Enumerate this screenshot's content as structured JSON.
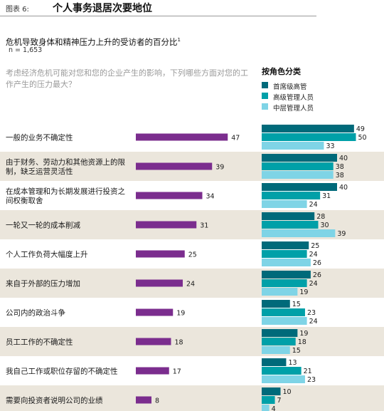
{
  "header": {
    "figure_label": "图表 6:",
    "title": "个人事务退居次要地位"
  },
  "subtitle": "危机导致身体和精神压力上升的受访者的百分比",
  "subtitle_footnote": "1",
  "sample": "n = 1,653",
  "question": "考虑经济危机可能对您和您的企业产生的影响，下列哪些方面对您的工作产生的压力最大？",
  "legend": {
    "title": "按角色分类",
    "items": [
      {
        "label": "首席级高管",
        "color": "#006a7a"
      },
      {
        "label": "高级管理人员",
        "color": "#00a0a8"
      },
      {
        "label": "中层管理人员",
        "color": "#7fd4e6"
      }
    ]
  },
  "colors": {
    "overall": "#7b2d8e",
    "row_shade": "#ebe6dc"
  },
  "chart_data": {
    "type": "bar",
    "orientation": "horizontal",
    "categories": [
      "一般的业务不确定性",
      "由于财务、劳动力和其他资源上的限制，缺乏运营灵活性",
      "在成本管理和为长期发展进行投资之间权衡取舍",
      "一轮又一轮的成本削减",
      "个人工作负荷大幅度上升",
      "来自于外部的压力增加",
      "公司内的政治斗争",
      "员工工作的不确定性",
      "我自己工作或职位存留的不确定性",
      "需要向投资者说明公司的业绩"
    ],
    "overall_values": [
      47,
      39,
      34,
      31,
      25,
      24,
      19,
      18,
      17,
      8
    ],
    "series": [
      {
        "name": "首席级高管",
        "values": [
          49,
          40,
          40,
          28,
          25,
          26,
          15,
          19,
          13,
          10
        ]
      },
      {
        "name": "高级管理人员",
        "values": [
          50,
          38,
          31,
          30,
          24,
          24,
          23,
          18,
          21,
          7
        ]
      },
      {
        "name": "中层管理人员",
        "values": [
          33,
          38,
          24,
          39,
          26,
          19,
          24,
          15,
          23,
          4
        ]
      }
    ],
    "xlim": [
      0,
      50
    ]
  }
}
